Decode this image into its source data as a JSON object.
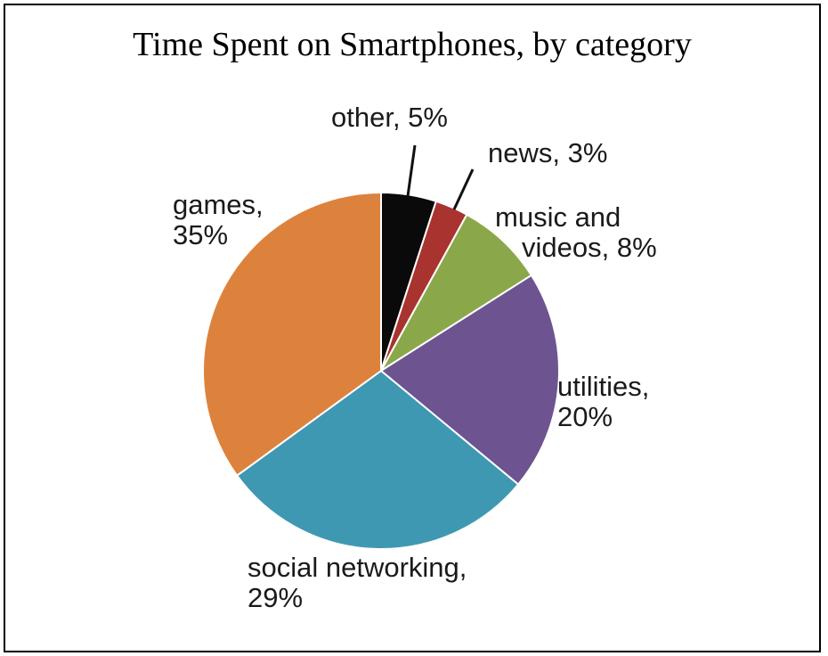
{
  "chart_data": {
    "type": "pie",
    "title": "Time Spent on Smartphones, by category",
    "slices": [
      {
        "label_lines": [
          "other, 5%"
        ],
        "category": "other",
        "value": 5,
        "color": "#0a0a0a"
      },
      {
        "label_lines": [
          "news, 3%"
        ],
        "category": "news",
        "value": 3,
        "color": "#a8332f"
      },
      {
        "label_lines": [
          "music and",
          "videos, 8%"
        ],
        "category": "music and videos",
        "value": 8,
        "color": "#8aa84a"
      },
      {
        "label_lines": [
          "utilities,",
          "20%"
        ],
        "category": "utilities",
        "value": 20,
        "color": "#6e5391"
      },
      {
        "label_lines": [
          "social networking,",
          "29%"
        ],
        "category": "social networking",
        "value": 29,
        "color": "#3f98b2"
      },
      {
        "label_lines": [
          "games,",
          "35%"
        ],
        "category": "games",
        "value": 35,
        "color": "#dd823d"
      }
    ]
  }
}
